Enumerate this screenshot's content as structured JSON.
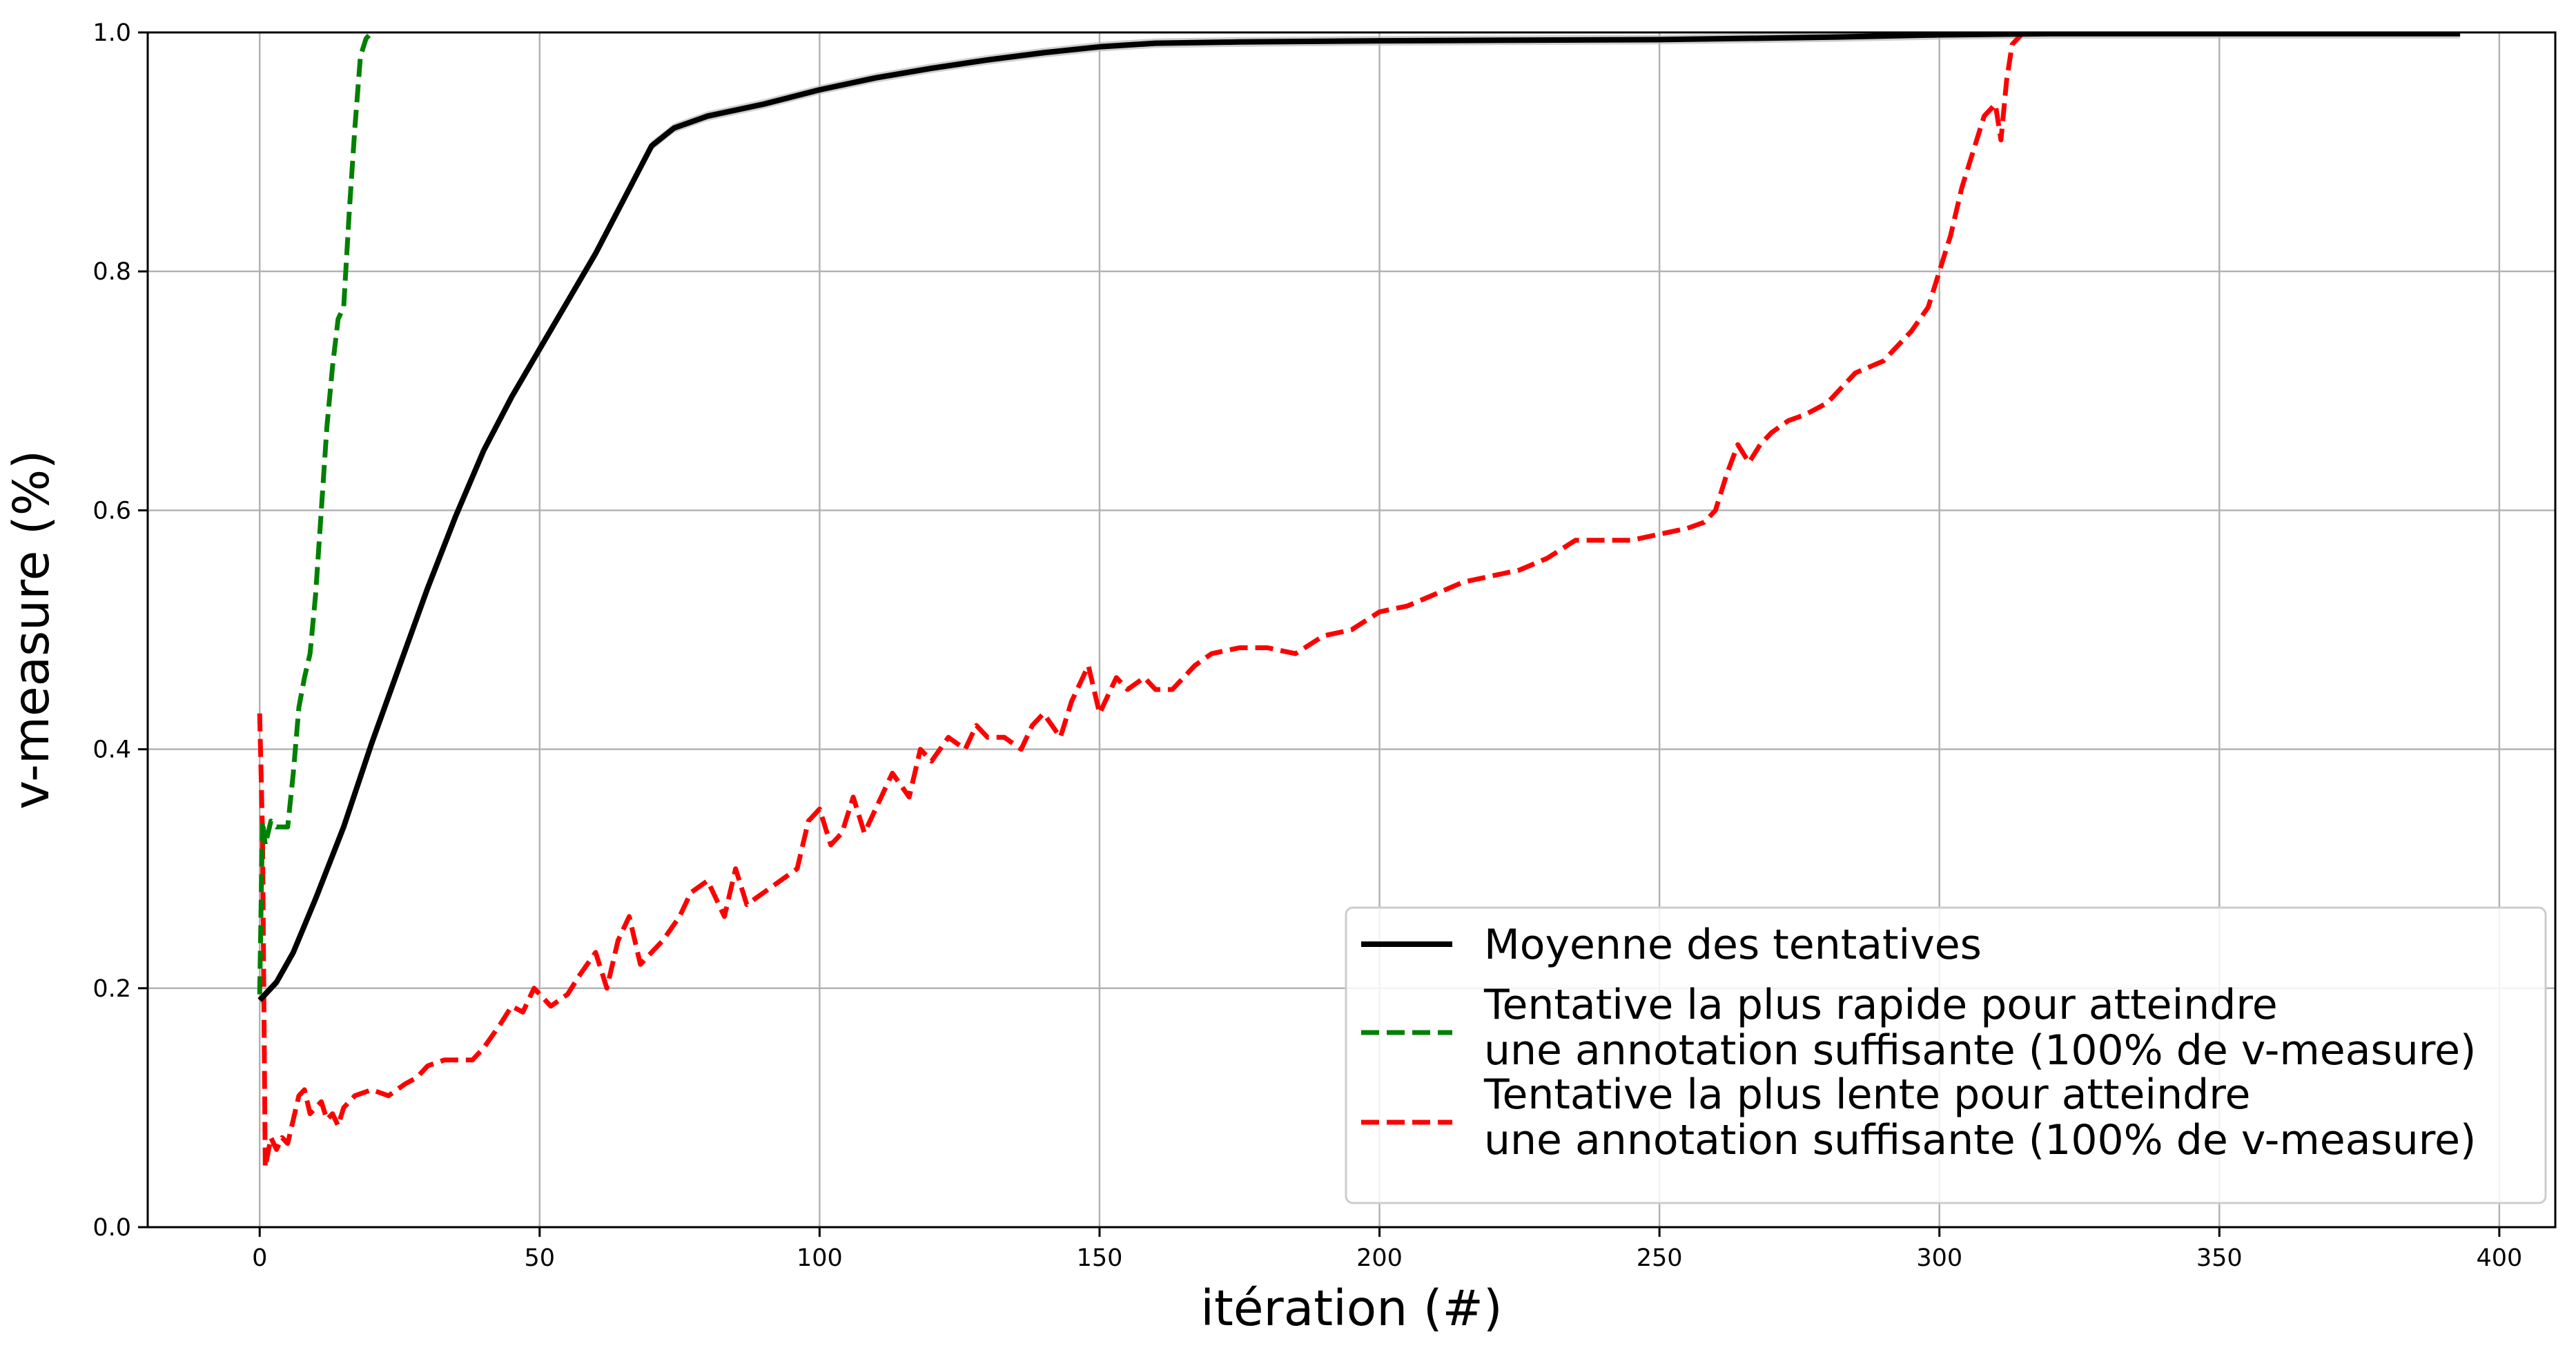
{
  "chart_data": {
    "type": "line",
    "title": "",
    "xlabel": "itération (#)",
    "ylabel": "v-measure (%)",
    "xlim": [
      -20,
      410
    ],
    "ylim": [
      0.0,
      1.0
    ],
    "xticks": [
      0,
      50,
      100,
      150,
      200,
      250,
      300,
      350,
      400
    ],
    "xtick_labels": [
      "0",
      "50",
      "100",
      "150",
      "200",
      "250",
      "300",
      "350",
      "400"
    ],
    "yticks": [
      0.0,
      0.2,
      0.4,
      0.6,
      0.8,
      1.0
    ],
    "ytick_labels": [
      "0.0",
      "0.2",
      "0.4",
      "0.6",
      "0.8",
      "1.0"
    ],
    "grid": true,
    "legend_position": "lower-right",
    "series": [
      {
        "name": "Moyenne des tentatives",
        "color": "#000000",
        "style": "solid",
        "band_color": "#bbbbbb",
        "points": [
          [
            0,
            0.19
          ],
          [
            3,
            0.205
          ],
          [
            6,
            0.23
          ],
          [
            10,
            0.275
          ],
          [
            15,
            0.335
          ],
          [
            20,
            0.405
          ],
          [
            25,
            0.47
          ],
          [
            30,
            0.535
          ],
          [
            35,
            0.595
          ],
          [
            40,
            0.65
          ],
          [
            45,
            0.695
          ],
          [
            50,
            0.735
          ],
          [
            55,
            0.775
          ],
          [
            60,
            0.815
          ],
          [
            65,
            0.86
          ],
          [
            70,
            0.905
          ],
          [
            74,
            0.92
          ],
          [
            80,
            0.93
          ],
          [
            90,
            0.94
          ],
          [
            100,
            0.952
          ],
          [
            110,
            0.962
          ],
          [
            120,
            0.97
          ],
          [
            130,
            0.977
          ],
          [
            140,
            0.983
          ],
          [
            150,
            0.988
          ],
          [
            160,
            0.991
          ],
          [
            175,
            0.992
          ],
          [
            200,
            0.993
          ],
          [
            250,
            0.994
          ],
          [
            280,
            0.996
          ],
          [
            300,
            0.998
          ],
          [
            320,
            0.999
          ],
          [
            350,
            0.999
          ],
          [
            393,
            0.999
          ]
        ]
      },
      {
        "name": "Tentative la plus rapide pour atteindre une annotation suffisante (100% de v-measure)",
        "legend_lines": [
          "Tentative la plus rapide pour atteindre",
          "une annotation suffisante (100% de v-measure)"
        ],
        "color": "#008000",
        "style": "dashed",
        "points": [
          [
            0,
            0.195
          ],
          [
            0.5,
            0.34
          ],
          [
            1,
            0.32
          ],
          [
            2,
            0.34
          ],
          [
            3,
            0.335
          ],
          [
            4,
            0.335
          ],
          [
            5,
            0.335
          ],
          [
            6,
            0.38
          ],
          [
            7,
            0.435
          ],
          [
            8,
            0.46
          ],
          [
            9,
            0.48
          ],
          [
            10,
            0.53
          ],
          [
            11,
            0.6
          ],
          [
            12,
            0.67
          ],
          [
            13,
            0.72
          ],
          [
            14,
            0.76
          ],
          [
            15,
            0.77
          ],
          [
            16,
            0.85
          ],
          [
            17,
            0.92
          ],
          [
            18,
            0.98
          ],
          [
            19,
            0.995
          ],
          [
            20,
            1.0
          ]
        ]
      },
      {
        "name": "Tentative la plus lente pour atteindre une annotation suffisante (100% de v-measure)",
        "legend_lines": [
          "Tentative la plus lente pour atteindre",
          "une annotation suffisante (100% de v-measure)"
        ],
        "color": "#ff0000",
        "style": "dashed",
        "points": [
          [
            0,
            0.43
          ],
          [
            0.5,
            0.33
          ],
          [
            1,
            0.05
          ],
          [
            2,
            0.075
          ],
          [
            3,
            0.065
          ],
          [
            4,
            0.075
          ],
          [
            5,
            0.07
          ],
          [
            6,
            0.09
          ],
          [
            7,
            0.11
          ],
          [
            8,
            0.115
          ],
          [
            9,
            0.095
          ],
          [
            10,
            0.1
          ],
          [
            11,
            0.105
          ],
          [
            12,
            0.09
          ],
          [
            13,
            0.095
          ],
          [
            14,
            0.085
          ],
          [
            15,
            0.1
          ],
          [
            17,
            0.11
          ],
          [
            20,
            0.115
          ],
          [
            23,
            0.11
          ],
          [
            26,
            0.12
          ],
          [
            28,
            0.125
          ],
          [
            30,
            0.135
          ],
          [
            33,
            0.14
          ],
          [
            35,
            0.14
          ],
          [
            38,
            0.14
          ],
          [
            40,
            0.15
          ],
          [
            43,
            0.17
          ],
          [
            45,
            0.185
          ],
          [
            47,
            0.18
          ],
          [
            49,
            0.2
          ],
          [
            52,
            0.185
          ],
          [
            55,
            0.195
          ],
          [
            57,
            0.21
          ],
          [
            60,
            0.23
          ],
          [
            62,
            0.2
          ],
          [
            64,
            0.24
          ],
          [
            66,
            0.26
          ],
          [
            68,
            0.22
          ],
          [
            70,
            0.23
          ],
          [
            72,
            0.24
          ],
          [
            75,
            0.26
          ],
          [
            77,
            0.28
          ],
          [
            80,
            0.29
          ],
          [
            83,
            0.26
          ],
          [
            85,
            0.3
          ],
          [
            87,
            0.27
          ],
          [
            90,
            0.28
          ],
          [
            93,
            0.29
          ],
          [
            96,
            0.3
          ],
          [
            98,
            0.34
          ],
          [
            100,
            0.35
          ],
          [
            102,
            0.32
          ],
          [
            104,
            0.33
          ],
          [
            106,
            0.36
          ],
          [
            108,
            0.33
          ],
          [
            110,
            0.35
          ],
          [
            113,
            0.38
          ],
          [
            116,
            0.36
          ],
          [
            118,
            0.4
          ],
          [
            120,
            0.39
          ],
          [
            123,
            0.41
          ],
          [
            126,
            0.4
          ],
          [
            128,
            0.42
          ],
          [
            130,
            0.41
          ],
          [
            133,
            0.41
          ],
          [
            136,
            0.4
          ],
          [
            138,
            0.42
          ],
          [
            140,
            0.43
          ],
          [
            143,
            0.41
          ],
          [
            145,
            0.44
          ],
          [
            148,
            0.47
          ],
          [
            150,
            0.43
          ],
          [
            153,
            0.46
          ],
          [
            155,
            0.45
          ],
          [
            158,
            0.46
          ],
          [
            160,
            0.45
          ],
          [
            163,
            0.45
          ],
          [
            165,
            0.46
          ],
          [
            167,
            0.47
          ],
          [
            170,
            0.48
          ],
          [
            175,
            0.485
          ],
          [
            180,
            0.485
          ],
          [
            185,
            0.48
          ],
          [
            190,
            0.495
          ],
          [
            195,
            0.5
          ],
          [
            200,
            0.515
          ],
          [
            205,
            0.52
          ],
          [
            210,
            0.53
          ],
          [
            215,
            0.54
          ],
          [
            220,
            0.545
          ],
          [
            225,
            0.55
          ],
          [
            230,
            0.56
          ],
          [
            235,
            0.575
          ],
          [
            240,
            0.575
          ],
          [
            245,
            0.575
          ],
          [
            250,
            0.58
          ],
          [
            255,
            0.585
          ],
          [
            258,
            0.59
          ],
          [
            260,
            0.6
          ],
          [
            262,
            0.63
          ],
          [
            264,
            0.655
          ],
          [
            266,
            0.64
          ],
          [
            268,
            0.655
          ],
          [
            270,
            0.665
          ],
          [
            273,
            0.675
          ],
          [
            276,
            0.68
          ],
          [
            280,
            0.69
          ],
          [
            285,
            0.715
          ],
          [
            290,
            0.725
          ],
          [
            295,
            0.75
          ],
          [
            298,
            0.77
          ],
          [
            300,
            0.8
          ],
          [
            302,
            0.83
          ],
          [
            304,
            0.87
          ],
          [
            306,
            0.9
          ],
          [
            308,
            0.93
          ],
          [
            310,
            0.94
          ],
          [
            311,
            0.91
          ],
          [
            312,
            0.96
          ],
          [
            313,
            0.99
          ],
          [
            315,
            1.0
          ]
        ]
      }
    ]
  }
}
